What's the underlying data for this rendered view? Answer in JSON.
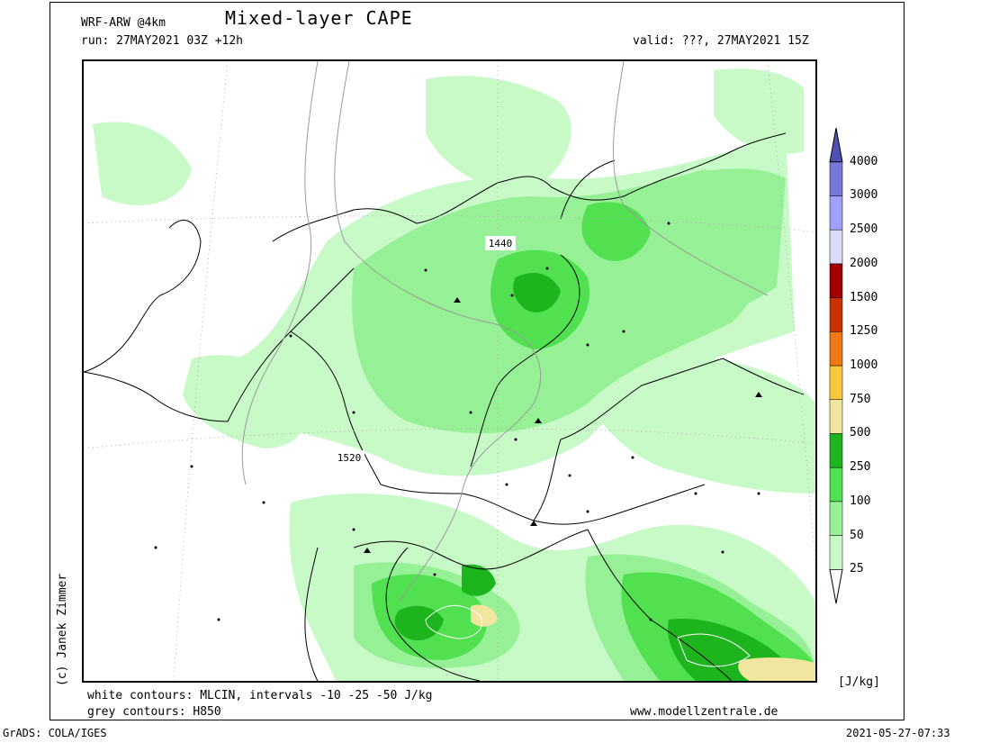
{
  "header": {
    "model": "WRF-ARW @4km",
    "title": "Mixed-layer CAPE",
    "run": "run: 27MAY2021 03Z +12h",
    "valid": "valid: ???, 27MAY2021 15Z"
  },
  "footer": {
    "line1": "white contours: MLCIN, intervals -10 -25 -50 J/kg",
    "line2": "grey contours: H850",
    "site": "www.modellzentrale.de",
    "grads": "GrADS: COLA/IGES",
    "timestamp": "2021-05-27-07:33"
  },
  "credit": "(c) Janek Zimmer",
  "map": {
    "contour_labels": [
      "1440",
      "1520"
    ]
  },
  "colorbar": {
    "unit": "[J/kg]",
    "levels": [
      "25",
      "50",
      "100",
      "250",
      "500",
      "750",
      "1000",
      "1250",
      "1500",
      "2000",
      "2500",
      "3000",
      "4000"
    ],
    "colors": [
      "#c8fac8",
      "#96f096",
      "#50e050",
      "#1eb41e",
      "#f0e6a0",
      "#fac83c",
      "#f07814",
      "#c83200",
      "#a00000",
      "#dcdcfa",
      "#a0a0fa",
      "#7878dc",
      "#5050b4"
    ]
  }
}
